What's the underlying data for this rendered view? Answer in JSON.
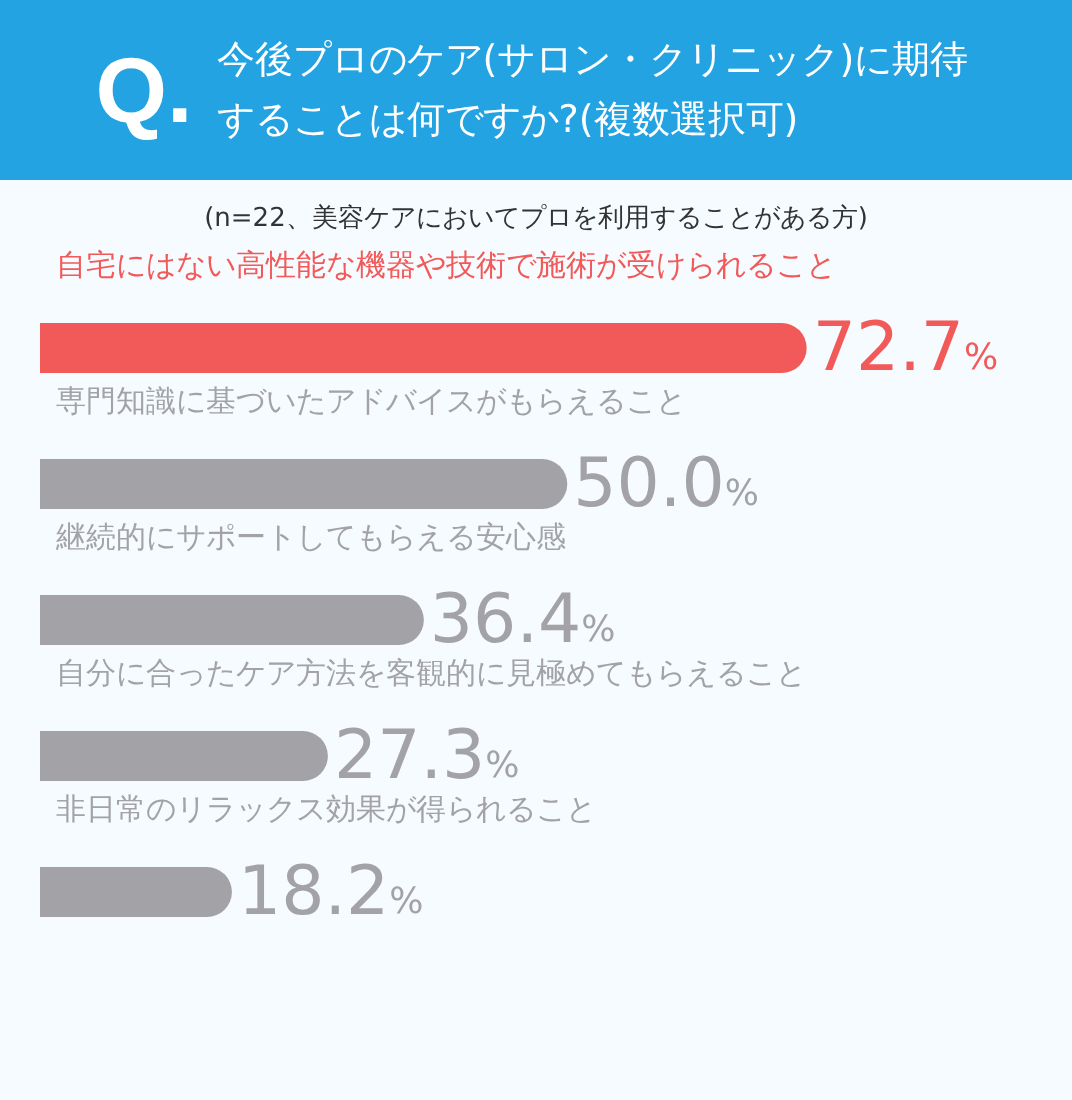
{
  "chart_data": {
    "type": "bar",
    "orientation": "horizontal",
    "title": "今後プロのケア(サロン・クリニック)に期待することは何ですか?(複数選択可)",
    "subtitle": "(n=22、美容ケアにおいてプロを利用することがある方)",
    "annotations": [
      "Q."
    ],
    "categories": [
      "自宅にはない高性能な機器や技術で施術が受けられること",
      "専門知識に基づいたアドバイスがもらえること",
      "継続的にサポートしてもらえる安心感",
      "自分に合ったケア方法を客観的に見極めてもらえること",
      "非日常のリラックス効果が得られること"
    ],
    "values": [
      72.7,
      50.0,
      36.4,
      27.3,
      18.2
    ],
    "value_labels": [
      "72.7%",
      "50.0%",
      "36.4%",
      "27.3%",
      "18.2%"
    ],
    "colors": [
      "#f25a5a",
      "#a3a3a7",
      "#a3a3a7",
      "#a3a3a7",
      "#a3a3a7"
    ]
  }
}
